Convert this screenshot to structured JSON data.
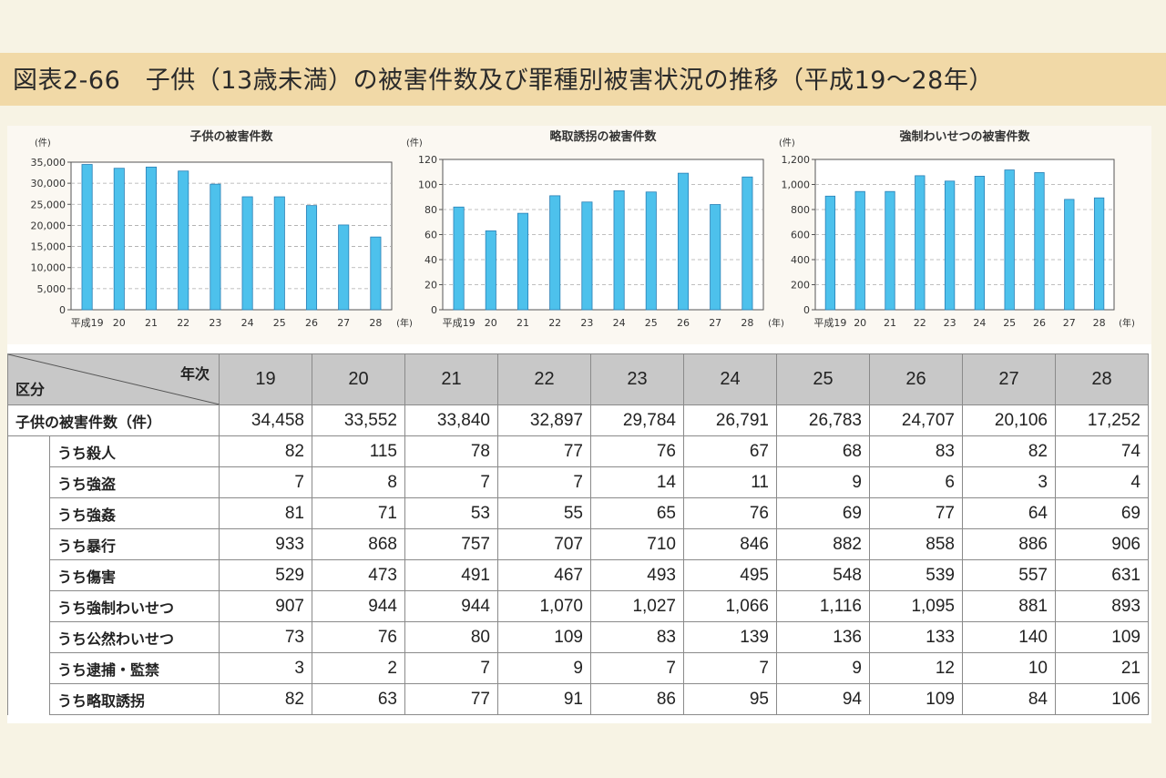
{
  "title": "図表2-66　子供（13歳未満）の被害件数及び罪種別被害状況の推移（平成19〜28年）",
  "colors": {
    "bar": "#4dc1ec",
    "bar_stroke": "#2a7fb5",
    "header_bg": "#c8c8c8",
    "title_bg": "#f1d9a7"
  },
  "chart_data": [
    {
      "type": "bar",
      "title": "子供の被害件数",
      "unit_label": "(件)",
      "year_unit": "(年)",
      "categories": [
        "平成19",
        "20",
        "21",
        "22",
        "23",
        "24",
        "25",
        "26",
        "27",
        "28"
      ],
      "values": [
        34458,
        33552,
        33840,
        32897,
        29784,
        26791,
        26783,
        24707,
        20106,
        17252
      ],
      "yticks": [
        "0",
        "5,000",
        "10,000",
        "15,000",
        "20,000",
        "25,000",
        "30,000",
        "35,000"
      ],
      "ylim": [
        0,
        35000
      ],
      "grid": true
    },
    {
      "type": "bar",
      "title": "略取誘拐の被害件数",
      "unit_label": "(件)",
      "year_unit": "(年)",
      "categories": [
        "平成19",
        "20",
        "21",
        "22",
        "23",
        "24",
        "25",
        "26",
        "27",
        "28"
      ],
      "values": [
        82,
        63,
        77,
        91,
        86,
        95,
        94,
        109,
        84,
        106
      ],
      "yticks": [
        "0",
        "20",
        "40",
        "60",
        "80",
        "100",
        "120"
      ],
      "ylim": [
        0,
        120
      ],
      "grid": true
    },
    {
      "type": "bar",
      "title": "強制わいせつの被害件数",
      "unit_label": "(件)",
      "year_unit": "(年)",
      "categories": [
        "平成19",
        "20",
        "21",
        "22",
        "23",
        "24",
        "25",
        "26",
        "27",
        "28"
      ],
      "values": [
        907,
        944,
        944,
        1070,
        1027,
        1066,
        1116,
        1095,
        881,
        893
      ],
      "yticks": [
        "0",
        "200",
        "400",
        "600",
        "800",
        "1,000",
        "1,200"
      ],
      "ylim": [
        0,
        1200
      ],
      "grid": true
    }
  ],
  "table": {
    "corner_top": "年次",
    "corner_bottom": "区分",
    "years": [
      "19",
      "20",
      "21",
      "22",
      "23",
      "24",
      "25",
      "26",
      "27",
      "28"
    ],
    "rows": [
      {
        "label": "子供の被害件数（件）",
        "values": [
          "34,458",
          "33,552",
          "33,840",
          "32,897",
          "29,784",
          "26,791",
          "26,783",
          "24,707",
          "20,106",
          "17,252"
        ]
      },
      {
        "label": "うち殺人",
        "values": [
          "82",
          "115",
          "78",
          "77",
          "76",
          "67",
          "68",
          "83",
          "82",
          "74"
        ]
      },
      {
        "label": "うち強盗",
        "values": [
          "7",
          "8",
          "7",
          "7",
          "14",
          "11",
          "9",
          "6",
          "3",
          "4"
        ]
      },
      {
        "label": "うち強姦",
        "values": [
          "81",
          "71",
          "53",
          "55",
          "65",
          "76",
          "69",
          "77",
          "64",
          "69"
        ]
      },
      {
        "label": "うち暴行",
        "values": [
          "933",
          "868",
          "757",
          "707",
          "710",
          "846",
          "882",
          "858",
          "886",
          "906"
        ]
      },
      {
        "label": "うち傷害",
        "values": [
          "529",
          "473",
          "491",
          "467",
          "493",
          "495",
          "548",
          "539",
          "557",
          "631"
        ]
      },
      {
        "label": "うち強制わいせつ",
        "values": [
          "907",
          "944",
          "944",
          "1,070",
          "1,027",
          "1,066",
          "1,116",
          "1,095",
          "881",
          "893"
        ]
      },
      {
        "label": "うち公然わいせつ",
        "values": [
          "73",
          "76",
          "80",
          "109",
          "83",
          "139",
          "136",
          "133",
          "140",
          "109"
        ]
      },
      {
        "label": "うち逮捕・監禁",
        "values": [
          "3",
          "2",
          "7",
          "9",
          "7",
          "7",
          "9",
          "12",
          "10",
          "21"
        ]
      },
      {
        "label": "うち略取誘拐",
        "values": [
          "82",
          "63",
          "77",
          "91",
          "86",
          "95",
          "94",
          "109",
          "84",
          "106"
        ]
      }
    ]
  }
}
